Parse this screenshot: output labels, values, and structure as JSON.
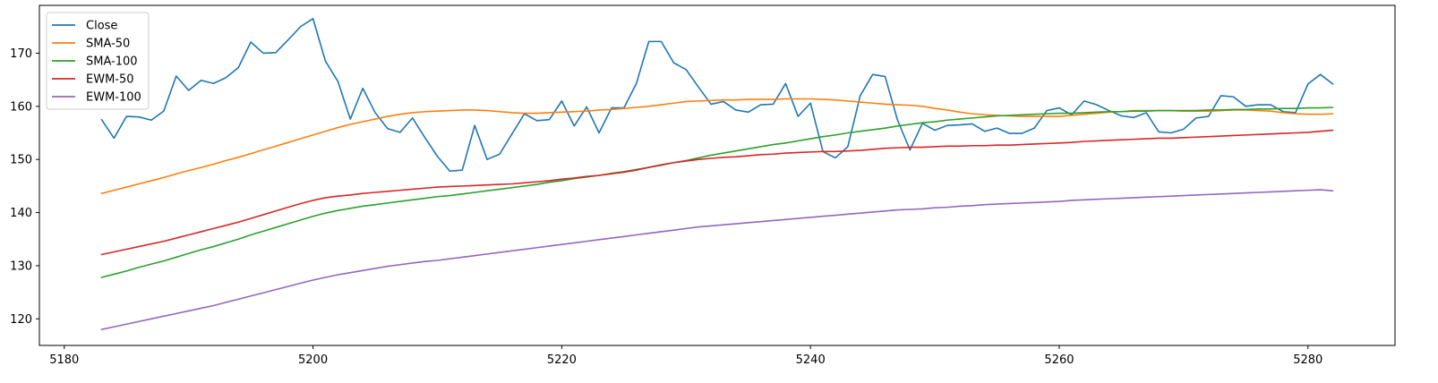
{
  "chart_data": {
    "type": "line",
    "title": "",
    "xlabel": "",
    "ylabel": "",
    "xlim": [
      5178,
      5287
    ],
    "ylim": [
      115,
      179
    ],
    "x_ticks": [
      5180,
      5200,
      5220,
      5240,
      5260,
      5280
    ],
    "y_ticks": [
      120,
      130,
      140,
      150,
      160,
      170
    ],
    "grid": false,
    "legend_position": "upper-left",
    "x": [
      5183,
      5184,
      5185,
      5186,
      5187,
      5188,
      5189,
      5190,
      5191,
      5192,
      5193,
      5194,
      5195,
      5196,
      5197,
      5198,
      5199,
      5200,
      5201,
      5202,
      5203,
      5204,
      5205,
      5206,
      5207,
      5208,
      5209,
      5210,
      5211,
      5212,
      5213,
      5214,
      5215,
      5216,
      5217,
      5218,
      5219,
      5220,
      5221,
      5222,
      5223,
      5224,
      5225,
      5226,
      5227,
      5228,
      5229,
      5230,
      5231,
      5232,
      5233,
      5234,
      5235,
      5236,
      5237,
      5238,
      5239,
      5240,
      5241,
      5242,
      5243,
      5244,
      5245,
      5246,
      5247,
      5248,
      5249,
      5250,
      5251,
      5252,
      5253,
      5254,
      5255,
      5256,
      5257,
      5258,
      5259,
      5260,
      5261,
      5262,
      5263,
      5264,
      5265,
      5266,
      5267,
      5268,
      5269,
      5270,
      5271,
      5272,
      5273,
      5274,
      5275,
      5276,
      5277,
      5278,
      5279,
      5280,
      5281,
      5282
    ],
    "series": [
      {
        "name": "Close",
        "color": "#1f77b4",
        "values": [
          157.5,
          154.0,
          158.1,
          158.0,
          157.4,
          159.1,
          165.7,
          163.0,
          164.9,
          164.3,
          165.4,
          167.3,
          172.1,
          170.0,
          170.1,
          172.5,
          175.0,
          176.5,
          168.5,
          164.7,
          157.6,
          163.4,
          158.8,
          155.8,
          155.1,
          157.8,
          154.1,
          150.6,
          147.8,
          148.0,
          156.4,
          150.0,
          151.0,
          154.8,
          158.6,
          157.3,
          157.5,
          161.0,
          156.3,
          159.9,
          155.0,
          159.7,
          159.7,
          164.3,
          172.2,
          172.2,
          168.2,
          166.9,
          163.6,
          160.4,
          160.9,
          159.3,
          158.9,
          160.3,
          160.4,
          164.3,
          158.1,
          160.6,
          151.5,
          150.3,
          152.4,
          162.0,
          166.0,
          165.6,
          157.4,
          151.8,
          156.8,
          155.5,
          156.4,
          156.5,
          156.7,
          155.3,
          155.9,
          154.9,
          154.9,
          155.9,
          159.2,
          159.7,
          158.4,
          161.0,
          160.3,
          159.2,
          158.2,
          157.9,
          158.8,
          155.2,
          155.0,
          155.7,
          157.8,
          158.1,
          162.0,
          161.8,
          160.0,
          160.3,
          160.3,
          159.0,
          158.8,
          164.2,
          166.0,
          164.2
        ]
      },
      {
        "name": "SMA-50",
        "color": "#ff7f0e",
        "values": [
          143.6,
          144.2,
          144.8,
          145.4,
          146.0,
          146.6,
          147.3,
          147.9,
          148.5,
          149.1,
          149.8,
          150.4,
          151.1,
          151.8,
          152.5,
          153.2,
          153.9,
          154.6,
          155.3,
          156.0,
          156.6,
          157.1,
          157.6,
          158.1,
          158.5,
          158.8,
          159.0,
          159.1,
          159.2,
          159.3,
          159.3,
          159.2,
          159.0,
          158.8,
          158.7,
          158.7,
          158.8,
          158.9,
          159.0,
          159.1,
          159.3,
          159.4,
          159.6,
          159.8,
          160.0,
          160.3,
          160.6,
          160.9,
          161.0,
          161.1,
          161.2,
          161.2,
          161.3,
          161.3,
          161.3,
          161.4,
          161.4,
          161.4,
          161.3,
          161.2,
          161.0,
          160.8,
          160.6,
          160.4,
          160.3,
          160.2,
          160.0,
          159.6,
          159.3,
          158.9,
          158.6,
          158.4,
          158.3,
          158.2,
          158.1,
          158.1,
          158.1,
          158.1,
          158.3,
          158.5,
          158.7,
          158.9,
          159.0,
          159.2,
          159.2,
          159.2,
          159.2,
          159.1,
          159.1,
          159.1,
          159.2,
          159.3,
          159.3,
          159.2,
          159.1,
          158.8,
          158.6,
          158.5,
          158.5,
          158.6
        ]
      },
      {
        "name": "SMA-100",
        "color": "#2ca02c",
        "values": [
          127.8,
          128.4,
          129.0,
          129.7,
          130.3,
          130.9,
          131.6,
          132.3,
          133.0,
          133.6,
          134.3,
          135.0,
          135.8,
          136.5,
          137.2,
          137.9,
          138.6,
          139.3,
          139.9,
          140.4,
          140.8,
          141.2,
          141.5,
          141.8,
          142.1,
          142.4,
          142.7,
          143.0,
          143.2,
          143.5,
          143.8,
          144.1,
          144.4,
          144.7,
          145.0,
          145.3,
          145.7,
          146.0,
          146.4,
          146.7,
          147.0,
          147.4,
          147.7,
          148.1,
          148.5,
          148.9,
          149.4,
          149.8,
          150.3,
          150.8,
          151.2,
          151.6,
          152.0,
          152.4,
          152.8,
          153.1,
          153.5,
          153.9,
          154.3,
          154.6,
          155.0,
          155.3,
          155.6,
          155.9,
          156.3,
          156.6,
          156.9,
          157.1,
          157.4,
          157.6,
          157.8,
          158.0,
          158.2,
          158.3,
          158.4,
          158.5,
          158.6,
          158.7,
          158.7,
          158.8,
          158.9,
          159.0,
          159.0,
          159.1,
          159.1,
          159.2,
          159.2,
          159.2,
          159.2,
          159.3,
          159.3,
          159.4,
          159.4,
          159.5,
          159.5,
          159.6,
          159.6,
          159.7,
          159.7,
          159.8
        ]
      },
      {
        "name": "EWM-50",
        "color": "#d62728",
        "values": [
          132.1,
          132.6,
          133.1,
          133.6,
          134.1,
          134.6,
          135.2,
          135.8,
          136.4,
          137.0,
          137.6,
          138.2,
          138.9,
          139.6,
          140.3,
          141.0,
          141.7,
          142.3,
          142.8,
          143.1,
          143.3,
          143.6,
          143.8,
          144.0,
          144.2,
          144.4,
          144.6,
          144.8,
          144.9,
          145.0,
          145.1,
          145.2,
          145.3,
          145.4,
          145.6,
          145.8,
          146.0,
          146.3,
          146.5,
          146.8,
          147.0,
          147.3,
          147.6,
          148.0,
          148.5,
          149.0,
          149.4,
          149.7,
          150.0,
          150.2,
          150.4,
          150.5,
          150.7,
          150.9,
          151.0,
          151.2,
          151.3,
          151.4,
          151.5,
          151.5,
          151.6,
          151.7,
          151.9,
          152.1,
          152.2,
          152.3,
          152.3,
          152.4,
          152.5,
          152.5,
          152.6,
          152.6,
          152.7,
          152.7,
          152.8,
          152.9,
          153.0,
          153.1,
          153.2,
          153.4,
          153.5,
          153.6,
          153.7,
          153.8,
          153.9,
          154.0,
          154.0,
          154.1,
          154.2,
          154.3,
          154.4,
          154.5,
          154.6,
          154.7,
          154.8,
          154.9,
          155.0,
          155.1,
          155.3,
          155.5
        ]
      },
      {
        "name": "EWM-100",
        "color": "#9467bd",
        "values": [
          118.0,
          118.5,
          119.0,
          119.5,
          120.0,
          120.5,
          121.0,
          121.5,
          122.0,
          122.5,
          123.1,
          123.7,
          124.3,
          124.9,
          125.5,
          126.1,
          126.7,
          127.3,
          127.8,
          128.3,
          128.7,
          129.1,
          129.5,
          129.9,
          130.2,
          130.5,
          130.8,
          131.0,
          131.3,
          131.6,
          131.9,
          132.2,
          132.5,
          132.8,
          133.1,
          133.4,
          133.7,
          134.0,
          134.3,
          134.6,
          134.9,
          135.2,
          135.5,
          135.8,
          136.1,
          136.4,
          136.7,
          137.0,
          137.3,
          137.5,
          137.7,
          137.9,
          138.1,
          138.3,
          138.5,
          138.7,
          138.9,
          139.1,
          139.3,
          139.5,
          139.7,
          139.9,
          140.1,
          140.3,
          140.5,
          140.6,
          140.7,
          140.9,
          141.0,
          141.2,
          141.3,
          141.5,
          141.6,
          141.7,
          141.8,
          141.9,
          142.0,
          142.1,
          142.3,
          142.4,
          142.5,
          142.6,
          142.7,
          142.8,
          142.9,
          143.0,
          143.1,
          143.2,
          143.3,
          143.4,
          143.5,
          143.6,
          143.7,
          143.8,
          143.9,
          144.0,
          144.1,
          144.2,
          144.3,
          144.1
        ]
      }
    ]
  }
}
